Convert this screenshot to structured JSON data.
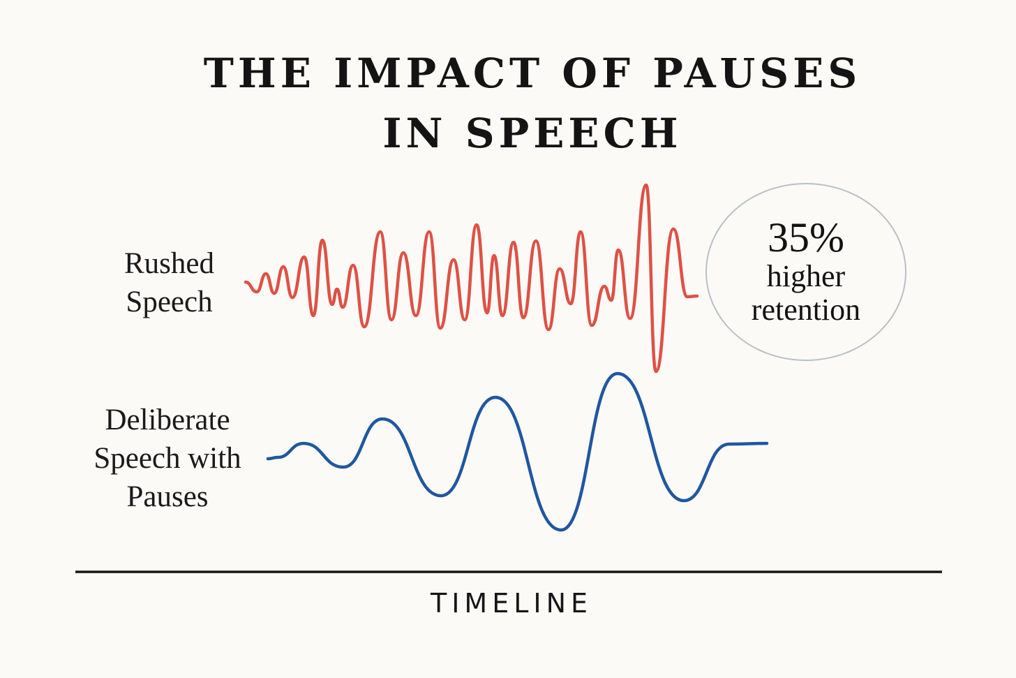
{
  "title": {
    "line1": "THE IMPACT OF PAUSES",
    "line2": "IN SPEECH"
  },
  "rushed": {
    "label": [
      "Rushed",
      "Speech"
    ],
    "color": "#de5144"
  },
  "deliberate": {
    "label": [
      "Deliberate",
      "Speech with",
      "Pauses"
    ],
    "color": "#1f57a0"
  },
  "badge": {
    "value": "35%",
    "line1": "higher",
    "line2": "retention"
  },
  "axis": {
    "label": "TIMELINE",
    "color": "#161616"
  }
}
